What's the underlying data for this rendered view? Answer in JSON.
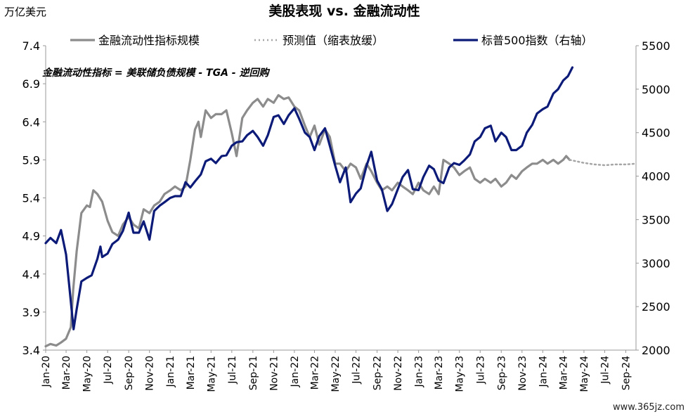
{
  "chart_data": {
    "type": "line",
    "title": "美股表现 vs. 金融流动性",
    "y_unit_label": "万亿美元",
    "annotation": "金融流动性指标 = 美联储负债规模 - TGA - 逆回购",
    "watermark": "www.365jz.com",
    "x_tick_labels": [
      "Jan-20",
      "Mar-20",
      "May-20",
      "Jul-20",
      "Sep-20",
      "Nov-20",
      "Jan-21",
      "Mar-21",
      "May-21",
      "Jul-21",
      "Sep-21",
      "Nov-21",
      "Jan-22",
      "Mar-22",
      "May-22",
      "Jul-22",
      "Sep-22",
      "Nov-22",
      "Jan-23",
      "Mar-23",
      "May-23",
      "Jul-23",
      "Sep-23",
      "Nov-23",
      "Jan-24",
      "Mar-24",
      "May-24",
      "Jul-24",
      "Sep-24"
    ],
    "xlim": [
      "2020-01-01",
      "2024-10-01"
    ],
    "y_left": {
      "ticks": [
        "3.4",
        "3.9",
        "4.4",
        "4.9",
        "5.4",
        "5.9",
        "6.4",
        "6.9",
        "7.4"
      ],
      "ylim": [
        3.4,
        7.4
      ]
    },
    "y_right": {
      "ticks": [
        "2000",
        "2500",
        "3000",
        "3500",
        "4000",
        "4500",
        "5000",
        "5500"
      ],
      "ylim": [
        2000,
        5500
      ]
    },
    "legend_position": "top",
    "series": [
      {
        "name": "金融流动性指标规模",
        "axis": "left",
        "style": "solid",
        "color": "#8c8c8c",
        "points": [
          [
            "2020-01-01",
            3.45
          ],
          [
            "2020-01-15",
            3.48
          ],
          [
            "2020-02-01",
            3.46
          ],
          [
            "2020-02-15",
            3.5
          ],
          [
            "2020-03-01",
            3.55
          ],
          [
            "2020-03-15",
            3.7
          ],
          [
            "2020-03-22",
            4.2
          ],
          [
            "2020-04-01",
            4.7
          ],
          [
            "2020-04-15",
            5.2
          ],
          [
            "2020-05-01",
            5.3
          ],
          [
            "2020-05-10",
            5.28
          ],
          [
            "2020-05-20",
            5.5
          ],
          [
            "2020-06-01",
            5.45
          ],
          [
            "2020-06-15",
            5.35
          ],
          [
            "2020-07-01",
            5.1
          ],
          [
            "2020-07-15",
            4.95
          ],
          [
            "2020-08-01",
            4.9
          ],
          [
            "2020-08-15",
            5.05
          ],
          [
            "2020-09-01",
            5.15
          ],
          [
            "2020-09-15",
            5.05
          ],
          [
            "2020-10-01",
            5.0
          ],
          [
            "2020-10-15",
            5.25
          ],
          [
            "2020-11-01",
            5.2
          ],
          [
            "2020-11-15",
            5.3
          ],
          [
            "2020-12-01",
            5.35
          ],
          [
            "2020-12-15",
            5.45
          ],
          [
            "2021-01-01",
            5.5
          ],
          [
            "2021-01-15",
            5.55
          ],
          [
            "2021-02-01",
            5.5
          ],
          [
            "2021-02-15",
            5.55
          ],
          [
            "2021-03-01",
            5.9
          ],
          [
            "2021-03-15",
            6.3
          ],
          [
            "2021-03-25",
            6.4
          ],
          [
            "2021-04-01",
            6.2
          ],
          [
            "2021-04-15",
            6.55
          ],
          [
            "2021-05-01",
            6.45
          ],
          [
            "2021-05-15",
            6.5
          ],
          [
            "2021-06-01",
            6.5
          ],
          [
            "2021-06-15",
            6.55
          ],
          [
            "2021-07-01",
            6.25
          ],
          [
            "2021-07-15",
            5.95
          ],
          [
            "2021-08-01",
            6.45
          ],
          [
            "2021-08-15",
            6.55
          ],
          [
            "2021-09-01",
            6.65
          ],
          [
            "2021-09-15",
            6.7
          ],
          [
            "2021-10-01",
            6.6
          ],
          [
            "2021-10-15",
            6.7
          ],
          [
            "2021-11-01",
            6.65
          ],
          [
            "2021-11-15",
            6.75
          ],
          [
            "2021-12-01",
            6.7
          ],
          [
            "2021-12-15",
            6.72
          ],
          [
            "2022-01-01",
            6.6
          ],
          [
            "2022-01-15",
            6.55
          ],
          [
            "2022-02-01",
            6.35
          ],
          [
            "2022-02-15",
            6.2
          ],
          [
            "2022-03-01",
            6.35
          ],
          [
            "2022-03-15",
            6.1
          ],
          [
            "2022-04-01",
            6.3
          ],
          [
            "2022-04-15",
            6.2
          ],
          [
            "2022-05-01",
            5.85
          ],
          [
            "2022-05-15",
            5.85
          ],
          [
            "2022-06-01",
            5.75
          ],
          [
            "2022-06-15",
            5.85
          ],
          [
            "2022-07-01",
            5.8
          ],
          [
            "2022-07-15",
            5.65
          ],
          [
            "2022-08-01",
            5.85
          ],
          [
            "2022-08-15",
            5.75
          ],
          [
            "2022-09-01",
            5.6
          ],
          [
            "2022-09-15",
            5.5
          ],
          [
            "2022-10-01",
            5.55
          ],
          [
            "2022-10-15",
            5.5
          ],
          [
            "2022-11-01",
            5.6
          ],
          [
            "2022-11-15",
            5.55
          ],
          [
            "2022-12-01",
            5.5
          ],
          [
            "2022-12-15",
            5.45
          ],
          [
            "2023-01-01",
            5.6
          ],
          [
            "2023-01-15",
            5.5
          ],
          [
            "2023-02-01",
            5.45
          ],
          [
            "2023-02-15",
            5.55
          ],
          [
            "2023-03-01",
            5.45
          ],
          [
            "2023-03-15",
            5.9
          ],
          [
            "2023-04-01",
            5.85
          ],
          [
            "2023-04-15",
            5.8
          ],
          [
            "2023-05-01",
            5.7
          ],
          [
            "2023-05-15",
            5.75
          ],
          [
            "2023-06-01",
            5.8
          ],
          [
            "2023-06-15",
            5.65
          ],
          [
            "2023-07-01",
            5.6
          ],
          [
            "2023-07-15",
            5.65
          ],
          [
            "2023-08-01",
            5.6
          ],
          [
            "2023-08-15",
            5.65
          ],
          [
            "2023-09-01",
            5.55
          ],
          [
            "2023-09-15",
            5.6
          ],
          [
            "2023-10-01",
            5.7
          ],
          [
            "2023-10-15",
            5.65
          ],
          [
            "2023-11-01",
            5.75
          ],
          [
            "2023-11-15",
            5.8
          ],
          [
            "2023-12-01",
            5.85
          ],
          [
            "2023-12-15",
            5.85
          ],
          [
            "2024-01-01",
            5.9
          ],
          [
            "2024-01-15",
            5.85
          ],
          [
            "2024-02-01",
            5.9
          ],
          [
            "2024-02-15",
            5.85
          ],
          [
            "2024-03-01",
            5.9
          ],
          [
            "2024-03-10",
            5.95
          ],
          [
            "2024-03-20",
            5.9
          ]
        ]
      },
      {
        "name": "预测值（缩表放缓）",
        "axis": "left",
        "style": "dotted",
        "color": "#a6a6a6",
        "points": [
          [
            "2024-03-20",
            5.9
          ],
          [
            "2024-05-01",
            5.86
          ],
          [
            "2024-06-01",
            5.84
          ],
          [
            "2024-07-01",
            5.83
          ],
          [
            "2024-08-01",
            5.84
          ],
          [
            "2024-09-01",
            5.84
          ],
          [
            "2024-10-01",
            5.85
          ]
        ]
      },
      {
        "name": "标普500指数（右轴）",
        "axis": "right",
        "style": "solid",
        "color": "#0c1a78",
        "points": [
          [
            "2020-01-01",
            3230
          ],
          [
            "2020-01-15",
            3290
          ],
          [
            "2020-02-01",
            3230
          ],
          [
            "2020-02-15",
            3380
          ],
          [
            "2020-03-01",
            3100
          ],
          [
            "2020-03-10",
            2750
          ],
          [
            "2020-03-23",
            2240
          ],
          [
            "2020-04-01",
            2470
          ],
          [
            "2020-04-15",
            2790
          ],
          [
            "2020-05-01",
            2830
          ],
          [
            "2020-05-15",
            2860
          ],
          [
            "2020-06-01",
            3050
          ],
          [
            "2020-06-10",
            3190
          ],
          [
            "2020-06-15",
            3070
          ],
          [
            "2020-07-01",
            3110
          ],
          [
            "2020-07-15",
            3220
          ],
          [
            "2020-08-01",
            3270
          ],
          [
            "2020-08-15",
            3370
          ],
          [
            "2020-09-01",
            3580
          ],
          [
            "2020-09-15",
            3350
          ],
          [
            "2020-10-01",
            3350
          ],
          [
            "2020-10-15",
            3480
          ],
          [
            "2020-11-01",
            3270
          ],
          [
            "2020-11-15",
            3600
          ],
          [
            "2020-12-01",
            3660
          ],
          [
            "2020-12-15",
            3700
          ],
          [
            "2021-01-01",
            3750
          ],
          [
            "2021-01-15",
            3770
          ],
          [
            "2021-02-01",
            3770
          ],
          [
            "2021-02-15",
            3930
          ],
          [
            "2021-03-01",
            3870
          ],
          [
            "2021-03-15",
            3940
          ],
          [
            "2021-04-01",
            4020
          ],
          [
            "2021-04-15",
            4170
          ],
          [
            "2021-05-01",
            4200
          ],
          [
            "2021-05-15",
            4150
          ],
          [
            "2021-06-01",
            4230
          ],
          [
            "2021-06-15",
            4240
          ],
          [
            "2021-07-01",
            4350
          ],
          [
            "2021-07-15",
            4390
          ],
          [
            "2021-08-01",
            4400
          ],
          [
            "2021-08-15",
            4470
          ],
          [
            "2021-09-01",
            4520
          ],
          [
            "2021-09-15",
            4450
          ],
          [
            "2021-10-01",
            4350
          ],
          [
            "2021-10-15",
            4470
          ],
          [
            "2021-11-01",
            4680
          ],
          [
            "2021-11-15",
            4700
          ],
          [
            "2021-12-01",
            4600
          ],
          [
            "2021-12-15",
            4700
          ],
          [
            "2022-01-01",
            4780
          ],
          [
            "2022-01-15",
            4660
          ],
          [
            "2022-02-01",
            4500
          ],
          [
            "2022-02-15",
            4450
          ],
          [
            "2022-03-01",
            4300
          ],
          [
            "2022-03-15",
            4460
          ],
          [
            "2022-04-01",
            4550
          ],
          [
            "2022-04-15",
            4350
          ],
          [
            "2022-05-01",
            4120
          ],
          [
            "2022-05-15",
            3930
          ],
          [
            "2022-06-01",
            4100
          ],
          [
            "2022-06-15",
            3700
          ],
          [
            "2022-07-01",
            3800
          ],
          [
            "2022-07-15",
            3860
          ],
          [
            "2022-08-01",
            4120
          ],
          [
            "2022-08-15",
            4280
          ],
          [
            "2022-09-01",
            3950
          ],
          [
            "2022-09-15",
            3850
          ],
          [
            "2022-10-01",
            3600
          ],
          [
            "2022-10-15",
            3680
          ],
          [
            "2022-11-01",
            3850
          ],
          [
            "2022-11-15",
            3990
          ],
          [
            "2022-12-01",
            4070
          ],
          [
            "2022-12-15",
            3850
          ],
          [
            "2023-01-01",
            3840
          ],
          [
            "2023-01-15",
            3990
          ],
          [
            "2023-02-01",
            4120
          ],
          [
            "2023-02-15",
            4080
          ],
          [
            "2023-03-01",
            3950
          ],
          [
            "2023-03-15",
            3920
          ],
          [
            "2023-04-01",
            4100
          ],
          [
            "2023-04-15",
            4150
          ],
          [
            "2023-05-01",
            4130
          ],
          [
            "2023-05-15",
            4180
          ],
          [
            "2023-06-01",
            4250
          ],
          [
            "2023-06-15",
            4400
          ],
          [
            "2023-07-01",
            4450
          ],
          [
            "2023-07-15",
            4550
          ],
          [
            "2023-08-01",
            4580
          ],
          [
            "2023-08-15",
            4400
          ],
          [
            "2023-09-01",
            4500
          ],
          [
            "2023-09-15",
            4450
          ],
          [
            "2023-10-01",
            4300
          ],
          [
            "2023-10-15",
            4300
          ],
          [
            "2023-11-01",
            4350
          ],
          [
            "2023-11-15",
            4500
          ],
          [
            "2023-12-01",
            4590
          ],
          [
            "2023-12-15",
            4720
          ],
          [
            "2024-01-01",
            4770
          ],
          [
            "2024-01-15",
            4800
          ],
          [
            "2024-02-01",
            4950
          ],
          [
            "2024-02-15",
            5000
          ],
          [
            "2024-03-01",
            5100
          ],
          [
            "2024-03-15",
            5150
          ],
          [
            "2024-03-28",
            5250
          ]
        ]
      }
    ]
  }
}
